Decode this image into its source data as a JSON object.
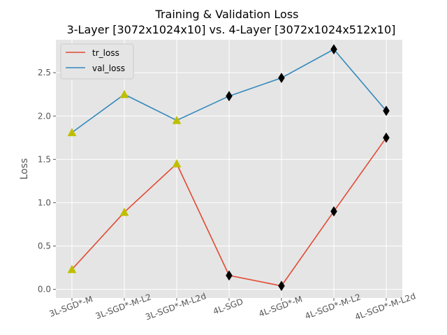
{
  "chart_data": {
    "type": "line",
    "title_line1": "Training & Validation Loss",
    "title_line2": "3-Layer [3072x1024x10] vs. 4-Layer [3072x1024x512x10]",
    "xlabel": "",
    "ylabel": "Loss",
    "categories": [
      "3L-SGD*-M",
      "3L-SGD*-M-L2",
      "3L-SGD*-M-L2d",
      "4L-SGD",
      "4L-SGD*-M",
      "4L-SGD*-M-L2",
      "4L-SGD*-M-L2d"
    ],
    "yticks": [
      "0.0",
      "0.5",
      "1.0",
      "1.5",
      "2.0",
      "2.5"
    ],
    "ylim": [
      -0.1,
      2.88
    ],
    "grid": true,
    "legend_position": "top-left",
    "series": [
      {
        "name": "tr_loss",
        "color": "#e24a33",
        "values": [
          0.23,
          0.89,
          1.45,
          0.16,
          0.04,
          0.9,
          1.75
        ]
      },
      {
        "name": "val_loss",
        "color": "#348abd",
        "values": [
          1.81,
          2.25,
          1.95,
          2.23,
          2.44,
          2.77,
          2.06
        ]
      }
    ],
    "markers": {
      "group_3layer": {
        "shape": "triangle",
        "color": "#bfbf00",
        "indices": [
          0,
          1,
          2
        ]
      },
      "group_4layer": {
        "shape": "diamond",
        "color": "#000000",
        "indices": [
          3,
          4,
          5,
          6
        ]
      }
    },
    "colors": {
      "plot_background": "#e5e5e5",
      "grid": "#ffffff"
    }
  }
}
